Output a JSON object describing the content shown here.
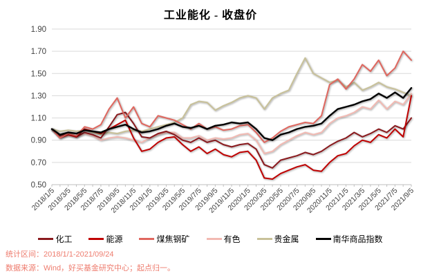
{
  "chart_data": {
    "type": "line",
    "title": "工业能化 - 收盘价",
    "xlabel": "",
    "ylabel": "",
    "ylim": [
      0.5,
      1.9
    ],
    "ytick_labels": [
      "0.50",
      "0.70",
      "0.90",
      "1.10",
      "1.30",
      "1.50",
      "1.70",
      "1.90"
    ],
    "x_tick_labels": [
      "2018/1/5",
      "2018/3/5",
      "2018/5/5",
      "2018/7/5",
      "2018/9/5",
      "2018/11/5",
      "2019/1/5",
      "2019/3/5",
      "2019/5/5",
      "2019/7/5",
      "2019/9/5",
      "2019/11/5",
      "2020/1/5",
      "2020/3/5",
      "2020/5/5",
      "2020/7/5",
      "2020/9/5",
      "2020/11/5",
      "2021/1/5",
      "2021/3/5",
      "2021/5/5",
      "2021/7/5",
      "2021/9/5"
    ],
    "x_resolution": "monthly, labels every 2 months",
    "grid": "horizontal",
    "legend_position": "bottom",
    "axis_color": "#BFBFBF",
    "grid_color": "#D9D9D9",
    "tick_label_color": "#404040",
    "series": [
      {
        "name": "化工",
        "color": "#8A191D",
        "values": [
          1.0,
          0.94,
          0.96,
          0.93,
          0.97,
          0.95,
          0.92,
          1.02,
          1.13,
          1.15,
          1.05,
          0.93,
          0.92,
          0.96,
          0.98,
          0.95,
          0.9,
          0.88,
          0.92,
          0.88,
          0.9,
          0.86,
          0.84,
          0.86,
          0.87,
          0.82,
          0.68,
          0.65,
          0.72,
          0.74,
          0.76,
          0.79,
          0.77,
          0.8,
          0.85,
          0.89,
          0.92,
          0.97,
          0.93,
          0.96,
          1.0,
          0.97,
          1.03,
          1.0,
          1.1
        ]
      },
      {
        "name": "能源",
        "color": "#C00000",
        "values": [
          1.0,
          0.92,
          0.95,
          0.93,
          1.0,
          0.98,
          0.96,
          1.0,
          1.04,
          1.08,
          0.92,
          0.8,
          0.82,
          0.88,
          0.92,
          0.93,
          0.86,
          0.8,
          0.84,
          0.78,
          0.82,
          0.77,
          0.75,
          0.79,
          0.8,
          0.72,
          0.56,
          0.55,
          0.6,
          0.63,
          0.66,
          0.68,
          0.63,
          0.62,
          0.7,
          0.76,
          0.78,
          0.85,
          0.9,
          0.88,
          0.95,
          0.92,
          1.0,
          0.93,
          1.3
        ]
      },
      {
        "name": "煤焦钢矿",
        "color": "#E0665E",
        "values": [
          1.0,
          0.92,
          0.96,
          0.94,
          1.02,
          1.0,
          1.04,
          1.18,
          1.28,
          1.1,
          1.2,
          1.05,
          1.02,
          1.12,
          1.1,
          1.08,
          1.04,
          1.0,
          1.05,
          1.0,
          1.02,
          0.99,
          1.0,
          1.03,
          1.04,
          0.97,
          0.88,
          0.92,
          0.98,
          1.02,
          1.04,
          1.06,
          1.05,
          1.12,
          1.4,
          1.45,
          1.36,
          1.45,
          1.58,
          1.52,
          1.62,
          1.48,
          1.55,
          1.7,
          1.62
        ]
      },
      {
        "name": "有色",
        "color": "#F2B9B2",
        "values": [
          1.0,
          0.93,
          0.94,
          0.93,
          0.96,
          0.94,
          0.9,
          0.92,
          0.93,
          0.92,
          0.9,
          0.88,
          0.92,
          0.95,
          0.97,
          0.97,
          0.92,
          0.92,
          0.94,
          0.9,
          0.92,
          0.91,
          0.92,
          0.95,
          0.96,
          0.9,
          0.78,
          0.8,
          0.86,
          0.9,
          0.94,
          0.97,
          0.95,
          0.97,
          1.05,
          1.1,
          1.12,
          1.15,
          1.2,
          1.18,
          1.26,
          1.18,
          1.25,
          1.22,
          1.32
        ]
      },
      {
        "name": "贵金属",
        "color": "#C8C199",
        "values": [
          1.0,
          0.98,
          0.99,
          0.98,
          0.99,
          0.97,
          0.95,
          0.97,
          0.96,
          0.98,
          0.99,
          0.98,
          1.0,
          1.02,
          1.04,
          1.06,
          1.1,
          1.22,
          1.25,
          1.24,
          1.17,
          1.21,
          1.24,
          1.28,
          1.3,
          1.28,
          1.18,
          1.28,
          1.32,
          1.35,
          1.5,
          1.64,
          1.5,
          1.46,
          1.42,
          1.44,
          1.38,
          1.42,
          1.35,
          1.38,
          1.42,
          1.38,
          1.36,
          1.33,
          1.3
        ]
      },
      {
        "name": "南华商品指数",
        "color": "#000000",
        "values": [
          1.0,
          0.95,
          0.97,
          0.96,
          0.99,
          0.98,
          0.97,
          1.0,
          1.02,
          1.04,
          1.0,
          0.97,
          0.98,
          1.0,
          1.03,
          1.05,
          1.02,
          1.01,
          1.03,
          1.0,
          1.03,
          1.04,
          1.06,
          1.05,
          1.06,
          1.0,
          0.92,
          0.9,
          0.95,
          0.97,
          1.0,
          1.02,
          1.03,
          1.05,
          1.12,
          1.18,
          1.2,
          1.22,
          1.25,
          1.27,
          1.32,
          1.28,
          1.33,
          1.28,
          1.37
        ]
      }
    ]
  },
  "footer": {
    "line1": "统计区间：2018/1/1-2021/09/24",
    "line2": "数据来源：Wind，好买基金研究中心；起点归一。",
    "color": "#EE7C6E"
  }
}
